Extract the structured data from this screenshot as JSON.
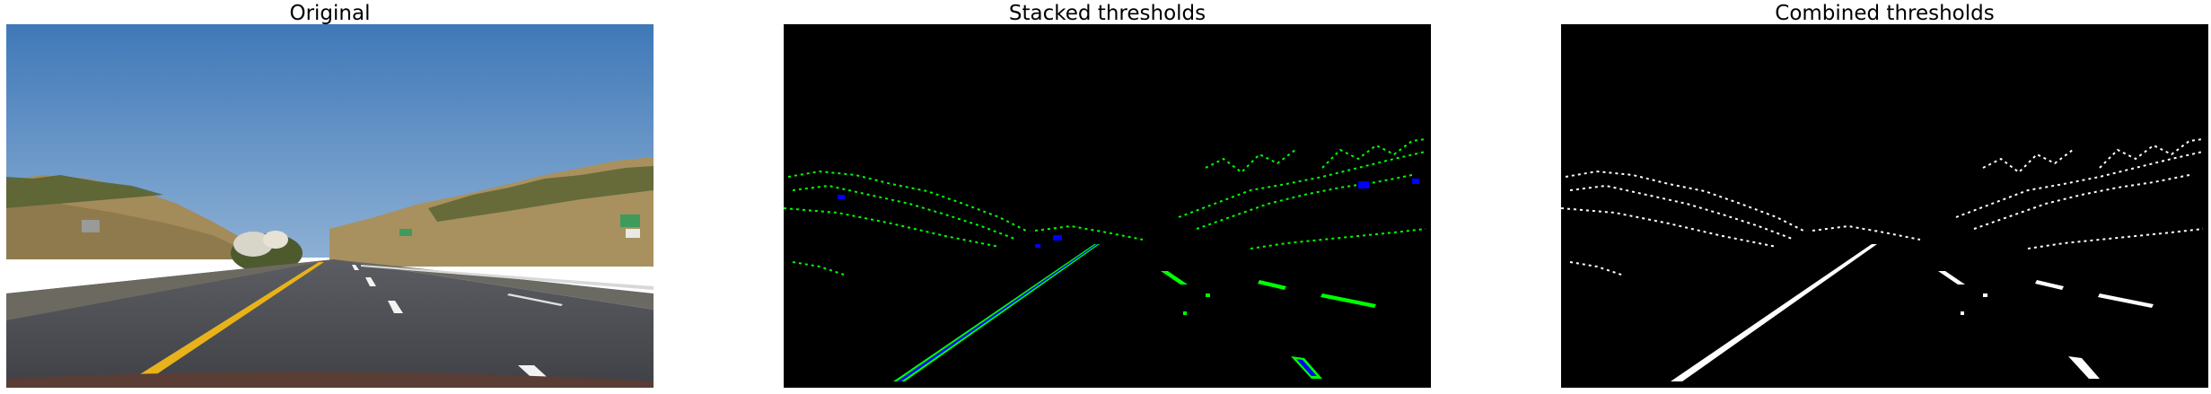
{
  "panels": [
    {
      "title": "Original"
    },
    {
      "title": "Stacked thresholds"
    },
    {
      "title": "Combined thresholds"
    }
  ],
  "colors": {
    "sky_top": "#3f78b8",
    "sky_bottom": "#87a9cf",
    "hills": "#a48b5a",
    "vegetation": "#4f5a31",
    "road": "#4a4c52",
    "yellow_line": "#e8b21a",
    "white_line": "#f2f2f2",
    "threshold_background": "#000000",
    "threshold_green": "#00ff00",
    "threshold_blue": "#0000ff",
    "threshold_white": "#ffffff"
  }
}
